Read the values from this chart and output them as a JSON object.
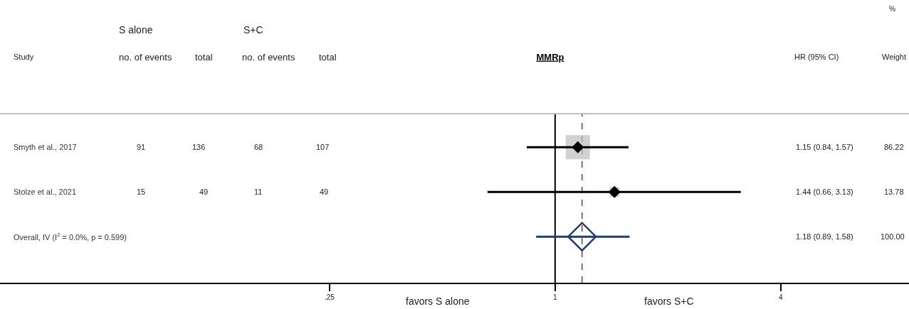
{
  "chart_data": {
    "type": "scatter",
    "title": "MMRp",
    "orientation": "horizontal",
    "log": "x",
    "grid": false,
    "tick_labels": "x",
    "categories": [
      "Smyth et al., 2017",
      "Stolze et al., 2021",
      "Overall, IV (I$^{2}$ = 0.0%, p = 0.599)"
    ],
    "xlim": [
      0.033,
      8.8
    ],
    "xticks": [
      {
        "value": 0.25,
        "label": ".25"
      },
      1,
      4
    ],
    "series": [
      {
        "type": "bubble",
        "color": "#bebebe",
        "marker": "square",
        "values": [
          1.15,
          1.44,
          null
        ],
        "sizes": [
          1,
          0.16,
          null
        ]
      },
      {
        "color": "#000000",
        "marker": "diamond",
        "values": [
          1.15,
          1.44,
          null
        ],
        "errors": [
          [
            0.84,
            1.57
          ],
          [
            0.66,
            3.13
          ],
          null
        ]
      },
      {
        "color": "#1f3d6e",
        "marker": "diamond-open",
        "values": [
          null,
          null,
          1.18
        ],
        "errors": [
          null,
          null,
          [
            0.89,
            1.58
          ]
        ]
      }
    ],
    "ref_lines": [
      {
        "axis": "x",
        "value": 1,
        "color": "#000000",
        "line_style": "solid"
      },
      {
        "axis": "x",
        "value": 1.18,
        "color": "#a52a2a",
        "line_style": "dashed"
      }
    ],
    "annotations": [
      "%",
      "S alone",
      "S+C",
      "Study",
      "no. of events",
      "total",
      "no. of events",
      "total",
      "HR (95% CI)",
      "Weight",
      "1.15 (0.84, 1.57)",
      "1.44 (0.66, 3.13)",
      "1.18 (0.89, 1.58)",
      "91",
      "136",
      "68",
      "107",
      "15",
      "49",
      "11",
      "49",
      "86.22",
      "13.78",
      "100.00",
      "favors S alone",
      "favors S+C"
    ]
  }
}
